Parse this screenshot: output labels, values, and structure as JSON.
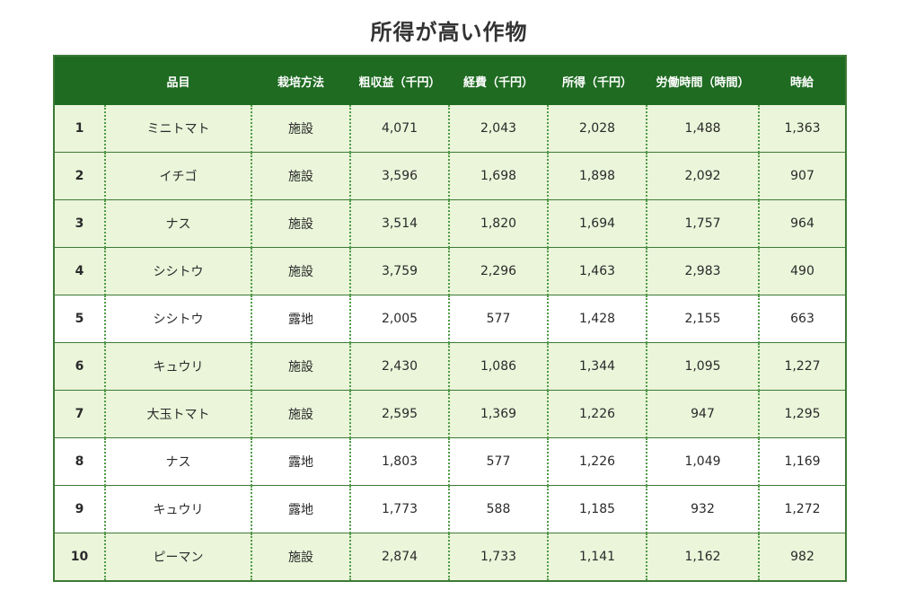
{
  "title": "所得が高い作物",
  "table": {
    "headers": [
      "",
      "品目",
      "栽培方法",
      "粗収益（千円）",
      "経費（千円）",
      "所得（千円）",
      "労働時間（時間）",
      "時給"
    ],
    "rows": [
      {
        "rank": "1",
        "item": "ミニトマト",
        "method": "施設",
        "revenue": "4,071",
        "expense": "2,043",
        "income": "2,028",
        "hours": "1,488",
        "wage": "1,363",
        "shade": "green"
      },
      {
        "rank": "2",
        "item": "イチゴ",
        "method": "施設",
        "revenue": "3,596",
        "expense": "1,698",
        "income": "1,898",
        "hours": "2,092",
        "wage": "907",
        "shade": "green"
      },
      {
        "rank": "3",
        "item": "ナス",
        "method": "施設",
        "revenue": "3,514",
        "expense": "1,820",
        "income": "1,694",
        "hours": "1,757",
        "wage": "964",
        "shade": "green"
      },
      {
        "rank": "4",
        "item": "シシトウ",
        "method": "施設",
        "revenue": "3,759",
        "expense": "2,296",
        "income": "1,463",
        "hours": "2,983",
        "wage": "490",
        "shade": "green"
      },
      {
        "rank": "5",
        "item": "シシトウ",
        "method": "露地",
        "revenue": "2,005",
        "expense": "577",
        "income": "1,428",
        "hours": "2,155",
        "wage": "663",
        "shade": "white"
      },
      {
        "rank": "6",
        "item": "キュウリ",
        "method": "施設",
        "revenue": "2,430",
        "expense": "1,086",
        "income": "1,344",
        "hours": "1,095",
        "wage": "1,227",
        "shade": "green"
      },
      {
        "rank": "7",
        "item": "大玉トマト",
        "method": "施設",
        "revenue": "2,595",
        "expense": "1,369",
        "income": "1,226",
        "hours": "947",
        "wage": "1,295",
        "shade": "green"
      },
      {
        "rank": "8",
        "item": "ナス",
        "method": "露地",
        "revenue": "1,803",
        "expense": "577",
        "income": "1,226",
        "hours": "1,049",
        "wage": "1,169",
        "shade": "white"
      },
      {
        "rank": "9",
        "item": "キュウリ",
        "method": "露地",
        "revenue": "1,773",
        "expense": "588",
        "income": "1,185",
        "hours": "932",
        "wage": "1,272",
        "shade": "white"
      },
      {
        "rank": "10",
        "item": "ピーマン",
        "method": "施設",
        "revenue": "2,874",
        "expense": "1,733",
        "income": "1,141",
        "hours": "1,162",
        "wage": "982",
        "shade": "green"
      }
    ]
  },
  "colors": {
    "header_bg": "#1f6b22",
    "row_green": "#eaf5da",
    "row_white": "#ffffff",
    "border": "#3d7a35"
  }
}
